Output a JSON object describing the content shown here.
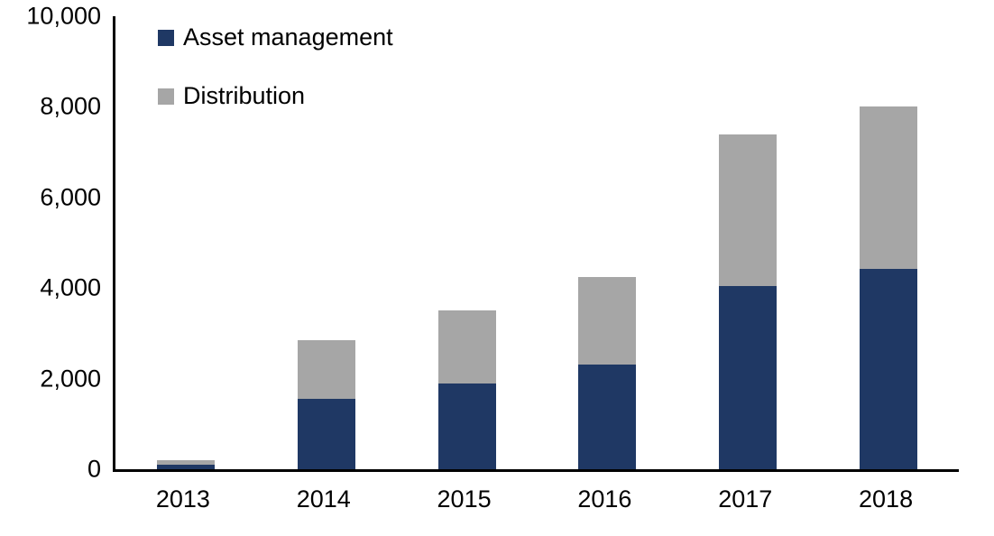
{
  "chart_data": {
    "type": "bar",
    "stacked": true,
    "title": "",
    "xlabel": "",
    "ylabel": "",
    "categories": [
      "2013",
      "2014",
      "2015",
      "2016",
      "2017",
      "2018"
    ],
    "series": [
      {
        "name": "Asset management",
        "color": "#1F3864",
        "values": [
          100,
          1550,
          1900,
          2320,
          4050,
          4420
        ]
      },
      {
        "name": "Distribution",
        "color": "#A6A6A6",
        "values": [
          100,
          1300,
          1600,
          1930,
          3350,
          3580
        ]
      }
    ],
    "totals": [
      200,
      2850,
      3500,
      4250,
      7400,
      8000
    ],
    "ylim": [
      0,
      10000
    ],
    "ytick_interval": 2000,
    "ytick_labels": [
      "0",
      "2,000",
      "4,000",
      "6,000",
      "8,000",
      "10,000"
    ],
    "grid": false,
    "legend_position": "top-left",
    "axis_color": "#000000"
  }
}
